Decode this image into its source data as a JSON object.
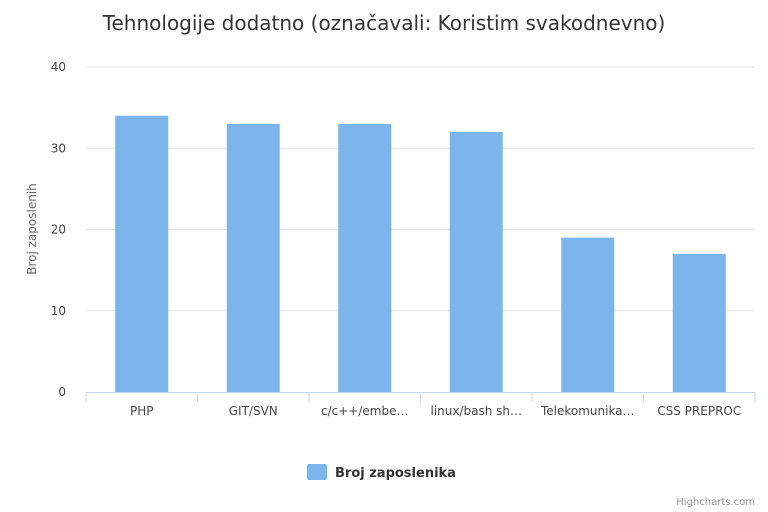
{
  "chart_data": {
    "type": "bar",
    "title": "Tehnologije dodatno (označavali: Koristim svakodnevno)",
    "ylabel": "Broj zaposlenih",
    "xlabel": "",
    "categories": [
      "PHP",
      "GIT/SVN",
      "c/c++/embe…",
      "linux/bash sh…",
      "Telekomunika…",
      "CSS PREPROC"
    ],
    "series": [
      {
        "name": "Broj zaposlenika",
        "values": [
          34,
          33,
          33,
          32,
          19,
          17
        ]
      }
    ],
    "ylim": [
      0,
      40
    ],
    "yticks": [
      0,
      10,
      20,
      30,
      40
    ],
    "grid": true,
    "legend": "bottom-center"
  },
  "colors": {
    "bar": "#7cb5ec",
    "grid": "#e6e6e6",
    "axis": "#ccd6eb"
  },
  "credits": "Highcharts.com"
}
